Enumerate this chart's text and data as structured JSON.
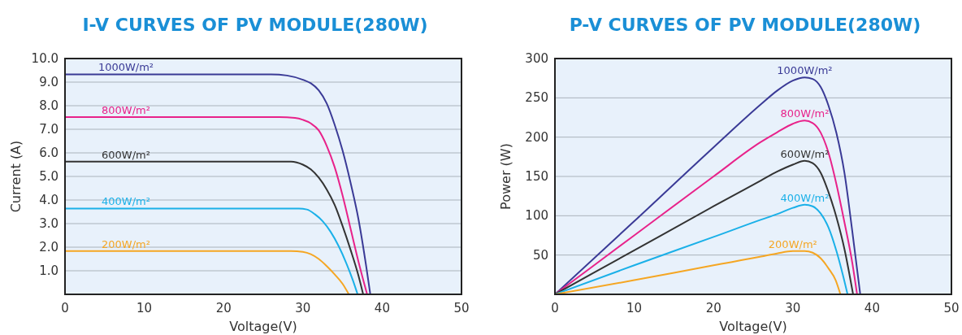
{
  "chart_data": [
    {
      "type": "line",
      "title": "I-V CURVES OF PV MODULE(280W)",
      "xlabel": "Voltage(V)",
      "ylabel": "Current (A)",
      "xlim": [
        0,
        50
      ],
      "xticks": [
        0,
        10,
        20,
        30,
        40,
        50
      ],
      "ylim": [
        0,
        10
      ],
      "yticks": [
        {
          "value": 1,
          "label": "1.0"
        },
        {
          "value": 2,
          "label": "2.0"
        },
        {
          "value": 3,
          "label": "3.0"
        },
        {
          "value": 4,
          "label": "4.0"
        },
        {
          "value": 5,
          "label": "5.0"
        },
        {
          "value": 6,
          "label": "6.0"
        },
        {
          "value": 7,
          "label": "7.0"
        },
        {
          "value": 8,
          "label": "8.0"
        },
        {
          "value": 9,
          "label": "9.0"
        },
        {
          "value": 10,
          "label": "10.0"
        }
      ],
      "grid": "y",
      "marker": "none",
      "line_style": "solid",
      "series": [
        {
          "name": "1000W/m²",
          "color": "#3a3a96",
          "x": [
            0,
            10,
            20,
            26,
            28,
            30,
            31,
            32,
            33,
            34,
            35,
            36,
            37,
            38,
            38.5
          ],
          "values": [
            9.33,
            9.33,
            9.33,
            9.33,
            9.28,
            9.1,
            8.95,
            8.65,
            8.1,
            7.2,
            6.1,
            4.75,
            3.2,
            1.15,
            0
          ]
        },
        {
          "name": "800W/m²",
          "color": "#e8228a",
          "x": [
            0,
            10,
            20,
            27,
            29,
            30,
            31,
            32,
            33,
            34,
            35,
            36,
            37,
            38.1
          ],
          "values": [
            7.52,
            7.52,
            7.52,
            7.52,
            7.48,
            7.4,
            7.25,
            6.95,
            6.3,
            5.4,
            4.2,
            2.8,
            1.4,
            0
          ]
        },
        {
          "name": "600W/m²",
          "color": "#333333",
          "x": [
            0,
            10,
            20,
            28.5,
            30,
            31,
            32,
            33,
            34,
            35,
            36,
            37,
            37.6
          ],
          "values": [
            5.63,
            5.63,
            5.63,
            5.63,
            5.5,
            5.3,
            4.95,
            4.45,
            3.8,
            2.9,
            1.9,
            0.8,
            0
          ]
        },
        {
          "name": "400W/m²",
          "color": "#1ab0e8",
          "x": [
            0,
            10,
            20,
            29.5,
            30.5,
            31.5,
            32.5,
            33.5,
            34.5,
            35.5,
            36.3,
            36.9
          ],
          "values": [
            3.64,
            3.64,
            3.64,
            3.64,
            3.6,
            3.4,
            3.1,
            2.65,
            2.05,
            1.3,
            0.6,
            0
          ]
        },
        {
          "name": "200W/m²",
          "color": "#f5a623",
          "x": [
            0,
            10,
            20,
            28.5,
            30,
            31,
            32,
            33,
            34,
            35,
            35.8
          ],
          "values": [
            1.84,
            1.84,
            1.84,
            1.84,
            1.8,
            1.7,
            1.5,
            1.2,
            0.85,
            0.45,
            0
          ]
        }
      ]
    },
    {
      "type": "line",
      "title": "P-V CURVES OF PV MODULE(280W)",
      "xlabel": "Voltage(V)",
      "ylabel": "Power (W)",
      "xlim": [
        0,
        50
      ],
      "xticks": [
        0,
        10,
        20,
        30,
        40,
        50
      ],
      "ylim": [
        0,
        300
      ],
      "yticks": [
        50,
        100,
        150,
        200,
        250,
        300
      ],
      "grid": "y",
      "marker": "none",
      "line_style": "solid",
      "series": [
        {
          "name": "1000W/m²",
          "color": "#3a3a96",
          "x": [
            0,
            10,
            20,
            26,
            28,
            30,
            31.5,
            32.5,
            33.5,
            34.5,
            35.5,
            36.5,
            37.5,
            38.5
          ],
          "values": [
            0,
            93,
            187,
            242,
            259,
            272,
            276,
            274,
            264,
            240,
            205,
            155,
            80,
            0
          ]
        },
        {
          "name": "800W/m²",
          "color": "#e8228a",
          "x": [
            0,
            10,
            20,
            26,
            28,
            30,
            31.5,
            32.5,
            33.5,
            34.5,
            35.5,
            36.5,
            37.5,
            38.1
          ],
          "values": [
            0,
            75,
            150,
            194,
            206,
            217,
            221,
            218,
            206,
            180,
            140,
            92,
            40,
            0
          ]
        },
        {
          "name": "600W/m²",
          "color": "#333333",
          "x": [
            0,
            10,
            20,
            26,
            28,
            30,
            31.5,
            32.5,
            33.5,
            34.5,
            35.5,
            36.5,
            37.6
          ],
          "values": [
            0,
            56,
            112,
            145,
            156,
            165,
            170,
            167,
            155,
            130,
            98,
            58,
            0
          ]
        },
        {
          "name": "400W/m²",
          "color": "#1ab0e8",
          "x": [
            0,
            10,
            20,
            26,
            28,
            30,
            31.5,
            32.5,
            33.5,
            34.5,
            35.5,
            36.3,
            36.9
          ],
          "values": [
            0,
            37,
            73,
            95,
            102,
            110,
            114,
            112,
            103,
            85,
            55,
            25,
            0
          ]
        },
        {
          "name": "200W/m²",
          "color": "#f5a623",
          "x": [
            0,
            10,
            20,
            26,
            28,
            30,
            31.5,
            32.5,
            33.5,
            34.5,
            35.4,
            36
          ],
          "values": [
            0,
            18,
            37,
            48,
            52,
            55,
            55,
            53,
            46,
            33,
            18,
            0
          ]
        }
      ]
    }
  ]
}
